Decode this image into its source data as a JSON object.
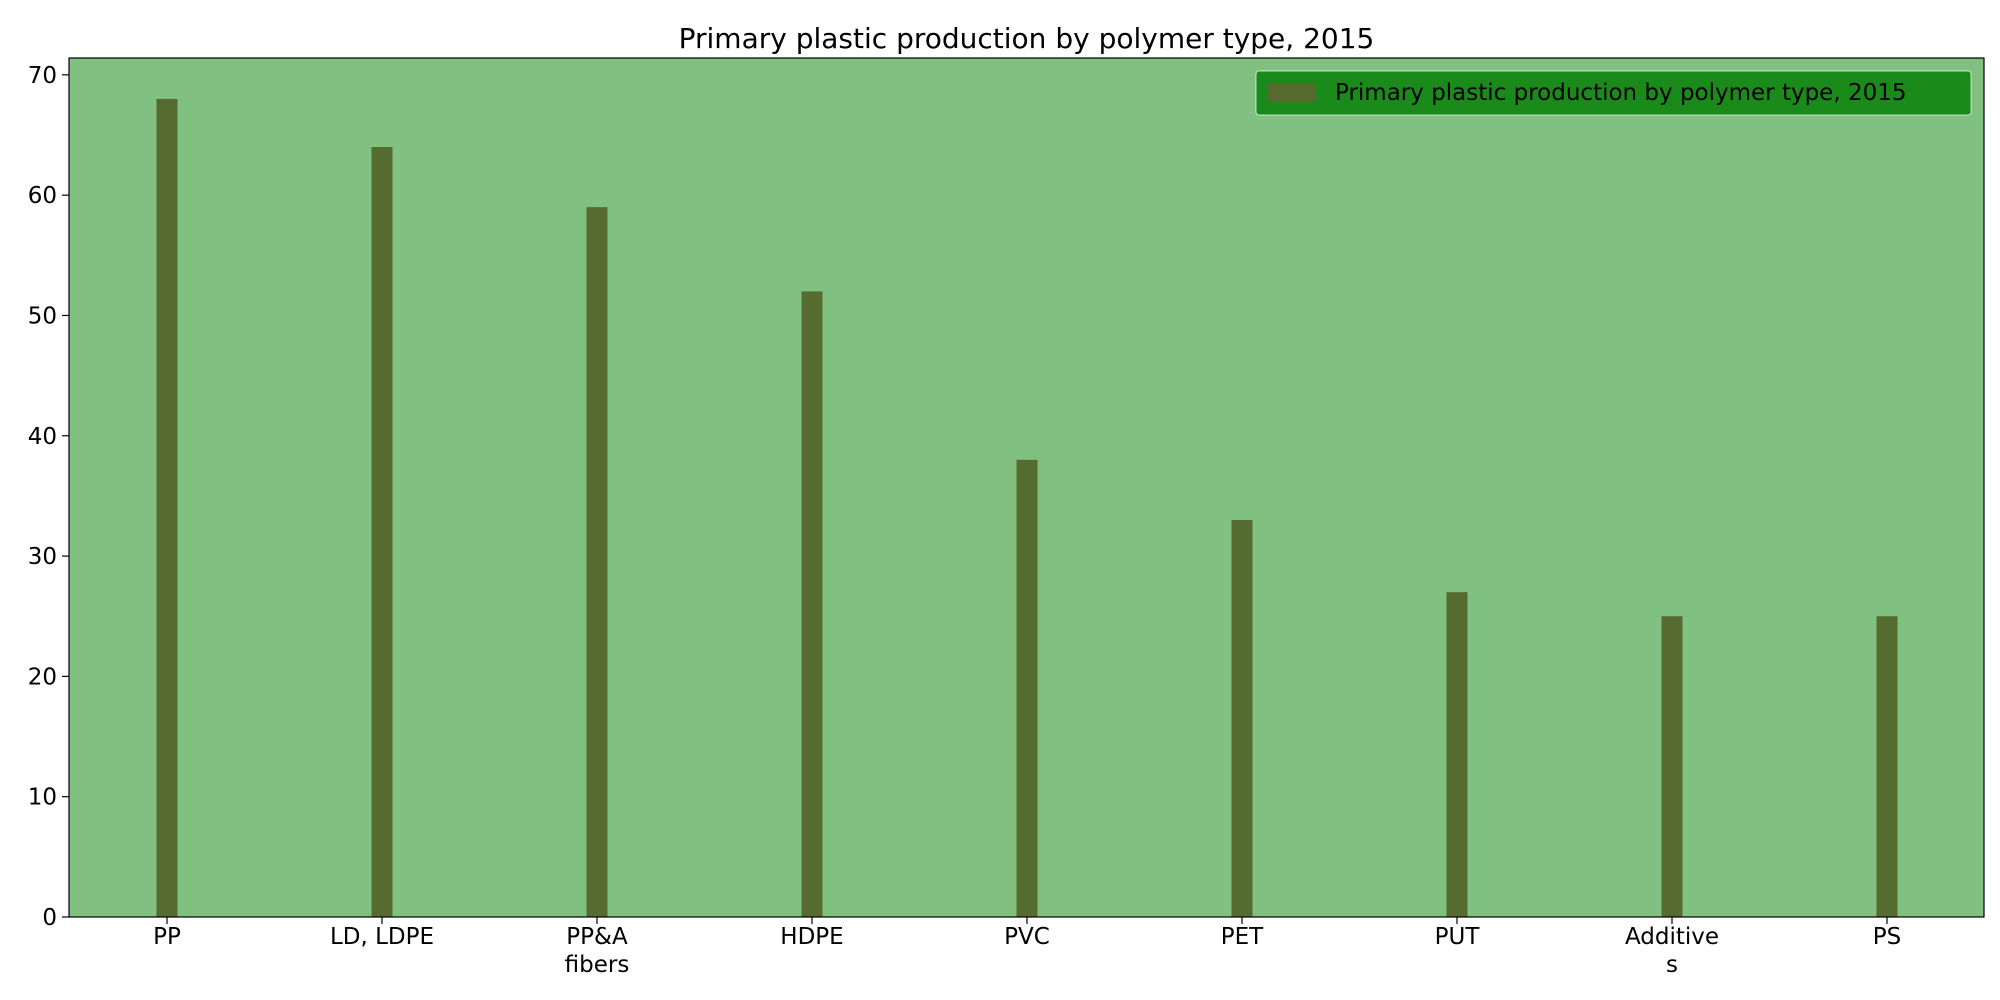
{
  "chart_data": {
    "type": "bar",
    "title": "Primary plastic production by polymer type, 2015",
    "categories": [
      "PP",
      "LD, LDPE",
      "PP&A\nfibers",
      "HDPE",
      "PVC",
      "PET",
      "PUT",
      "Additive\ns",
      "PS"
    ],
    "series": [
      {
        "name": "Primary plastic production by polymer type, 2015",
        "values": [
          68,
          64,
          59,
          52,
          38,
          33,
          27,
          25,
          25
        ]
      }
    ],
    "ylim": [
      0,
      71.4
    ],
    "yticks": [
      0,
      10,
      20,
      30,
      40,
      50,
      60,
      70
    ],
    "xlabel": "",
    "ylabel": "",
    "grid": false,
    "legend_position": "top-right",
    "colors": {
      "plot_background": "#80c080",
      "bar": "#556b2f",
      "legend_background": "#1a8a1a",
      "legend_border": "#ffffff"
    }
  }
}
